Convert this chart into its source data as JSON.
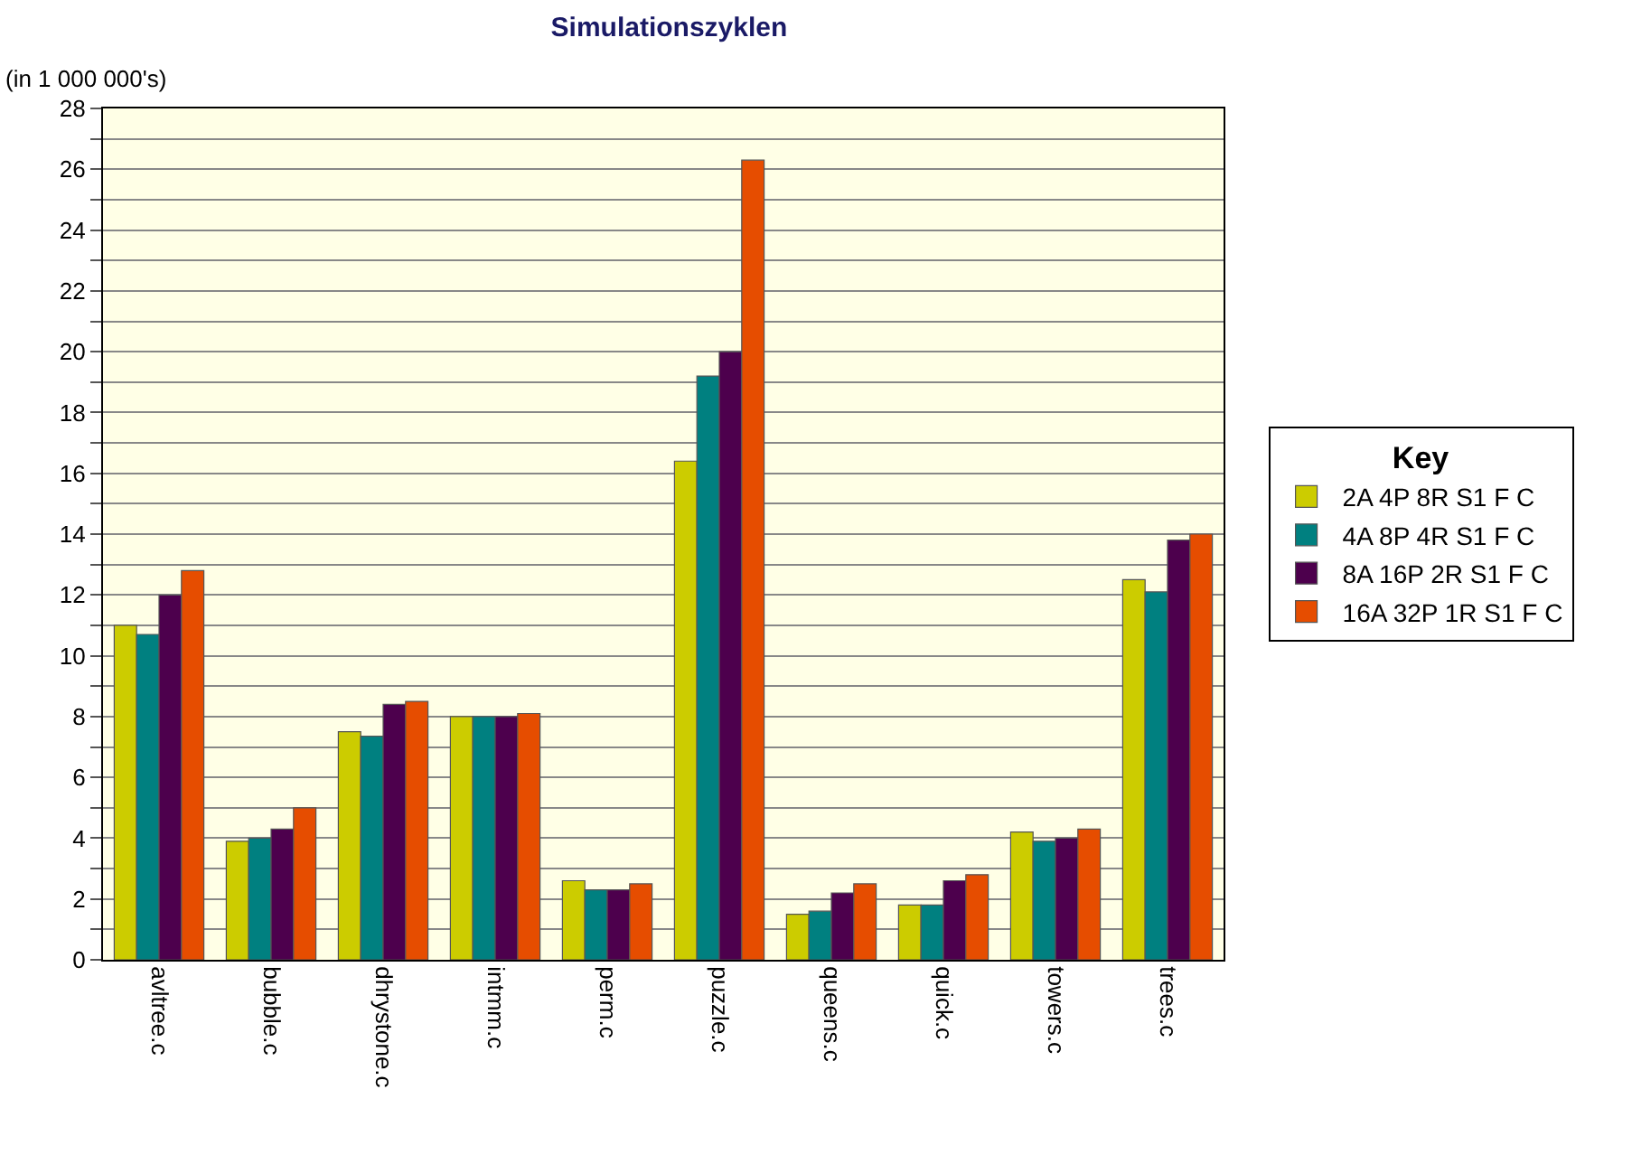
{
  "chart_data": {
    "type": "bar",
    "title": "Simulationszyklen",
    "ylabel": "(in 1 000 000's)",
    "legend_title": "Key",
    "categories": [
      "avltree.c",
      "bubble.c",
      "dhrystone.c",
      "intmm.c",
      "perm.c",
      "puzzle.c",
      "queens.c",
      "quick.c",
      "towers.c",
      "trees.c"
    ],
    "series": [
      {
        "name": "2A 4P 8R S1 F C",
        "color": "#cccc00",
        "values": [
          11.0,
          3.9,
          7.5,
          8.0,
          2.6,
          16.4,
          1.5,
          1.8,
          4.2,
          12.5
        ]
      },
      {
        "name": "4A 8P 4R S1 F C",
        "color": "#008080",
        "values": [
          10.7,
          4.0,
          7.35,
          8.0,
          2.3,
          19.2,
          1.6,
          1.8,
          3.9,
          12.1
        ]
      },
      {
        "name": "8A 16P 2R S1 F C",
        "color": "#4d004d",
        "values": [
          12.0,
          4.3,
          8.4,
          8.0,
          2.3,
          20.0,
          2.2,
          2.6,
          4.0,
          13.8
        ]
      },
      {
        "name": "16A 32P 1R S1 F C",
        "color": "#e64d00",
        "values": [
          12.8,
          5.0,
          8.5,
          8.1,
          2.5,
          26.3,
          2.5,
          2.8,
          4.3,
          14.0
        ]
      }
    ],
    "ylim": [
      0,
      28
    ],
    "yticks": [
      0,
      {
        "value": 1,
        "label": null
      },
      2,
      {
        "value": 3,
        "label": null
      },
      4,
      {
        "value": 5,
        "label": null
      },
      6,
      {
        "value": 7,
        "label": null
      },
      8,
      {
        "value": 9,
        "label": null
      },
      10,
      {
        "value": 11,
        "label": null
      },
      12,
      {
        "value": 13,
        "label": null
      },
      14,
      {
        "value": 15,
        "label": null
      },
      16,
      {
        "value": 17,
        "label": null
      },
      18,
      {
        "value": 19,
        "label": null
      },
      20,
      {
        "value": 21,
        "label": null
      },
      22,
      {
        "value": 23,
        "label": null
      },
      24,
      {
        "value": 25,
        "label": null
      },
      26,
      {
        "value": 27,
        "label": null
      },
      28
    ],
    "grid": "y",
    "legend": "right"
  }
}
